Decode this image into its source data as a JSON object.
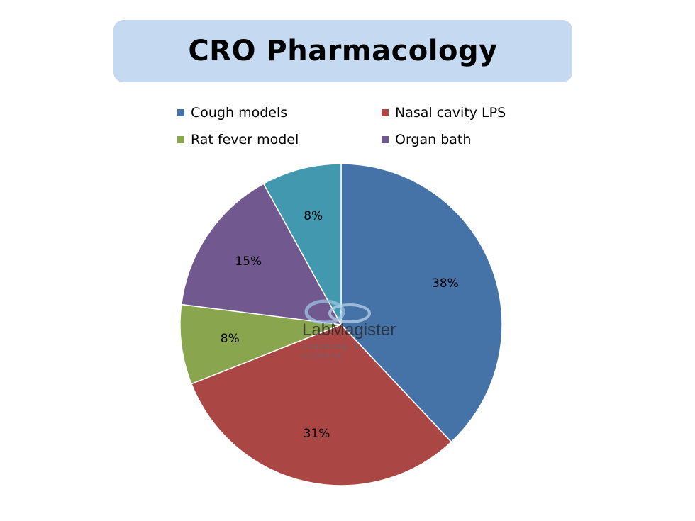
{
  "title": "CRO Pharmacology",
  "chart_data": {
    "type": "pie",
    "title": "CRO Pharmacology",
    "start_angle_deg": 0,
    "direction": "clockwise",
    "legend_position": "top",
    "slices": [
      {
        "label": "Cough models",
        "value": 38,
        "display": "38%",
        "color": "#4572a7"
      },
      {
        "label": "Nasal cavity LPS",
        "value": 31,
        "display": "31%",
        "color": "#aa4643"
      },
      {
        "label": "Rat fever model",
        "value": 8,
        "display": "8%",
        "color": "#89a54e"
      },
      {
        "label": "Organ bath",
        "value": 15,
        "display": "15%",
        "color": "#71588f"
      },
      {
        "label": "",
        "value": 8,
        "display": "8%",
        "color": "#4198af"
      }
    ],
    "legend": [
      "Cough models",
      "Nasal cavity LPS",
      "Rat fever model",
      "Organ bath"
    ]
  },
  "watermark": {
    "name": "LabMagister",
    "tagline": "training & science"
  }
}
